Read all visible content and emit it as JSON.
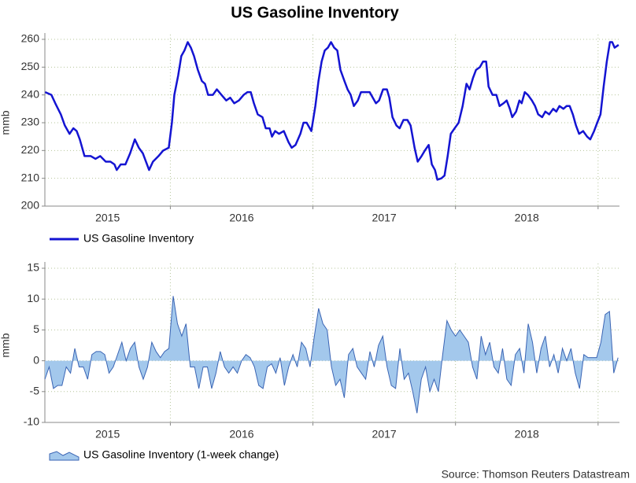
{
  "chart_data": [
    {
      "type": "line",
      "title": "US Gasoline Inventory",
      "ylabel": "mmb",
      "x": [
        2015.122,
        2015.166,
        2015.193,
        2015.232,
        2015.26,
        2015.293,
        2015.32,
        2015.343,
        2015.365,
        2015.398,
        2015.442,
        2015.475,
        2015.508,
        2015.547,
        2015.58,
        2015.608,
        2015.624,
        2015.652,
        2015.685,
        2015.718,
        2015.751,
        2015.779,
        2015.807,
        2015.829,
        2015.851,
        2015.878,
        2015.917,
        2015.95,
        2015.989,
        2016.011,
        2016.028,
        2016.055,
        2016.077,
        2016.099,
        2016.122,
        2016.144,
        2016.166,
        2016.193,
        2016.221,
        2016.243,
        2016.265,
        2016.298,
        2016.326,
        2016.359,
        2016.392,
        2016.42,
        2016.448,
        2016.481,
        2016.514,
        2016.541,
        2016.564,
        2016.586,
        2016.613,
        2016.646,
        2016.669,
        2016.696,
        2016.713,
        2016.735,
        2016.762,
        2016.796,
        2016.829,
        2016.851,
        2016.878,
        2016.912,
        2016.934,
        2016.956,
        2016.989,
        2017.017,
        2017.039,
        2017.061,
        2017.083,
        2017.105,
        2017.127,
        2017.149,
        2017.171,
        2017.193,
        2017.221,
        2017.243,
        2017.265,
        2017.287,
        2017.315,
        2017.337,
        2017.37,
        2017.398,
        2017.42,
        2017.442,
        2017.464,
        2017.492,
        2017.519,
        2017.536,
        2017.558,
        2017.586,
        2017.608,
        2017.635,
        2017.663,
        2017.685,
        2017.713,
        2017.735,
        2017.762,
        2017.785,
        2017.812,
        2017.834,
        2017.856,
        2017.873,
        2017.901,
        2017.923,
        2017.945,
        2017.967,
        2017.994,
        2018.022,
        2018.05,
        2018.077,
        2018.099,
        2018.122,
        2018.144,
        2018.171,
        2018.193,
        2018.215,
        2018.232,
        2018.26,
        2018.287,
        2018.309,
        2018.337,
        2018.359,
        2018.381,
        2018.398,
        2018.425,
        2018.448,
        2018.464,
        2018.486,
        2018.508,
        2018.536,
        2018.558,
        2018.58,
        2018.608,
        2018.63,
        2018.657,
        2018.685,
        2018.707,
        2018.729,
        2018.757,
        2018.779,
        2018.801,
        2018.823,
        2018.845,
        2018.867,
        2018.895,
        2018.923,
        2018.945,
        2018.972,
        2018.994,
        2019.017,
        2019.039,
        2019.061,
        2019.083,
        2019.099,
        2019.116,
        2019.144
      ],
      "series": [
        {
          "name": "US Gasoline Inventory",
          "color": "#1414d2",
          "values": [
            241,
            240,
            237,
            233,
            229,
            226,
            228,
            227,
            224,
            218,
            218,
            217,
            218,
            216,
            216,
            215,
            213,
            215,
            215,
            219,
            224,
            221,
            219,
            216,
            213,
            216,
            218,
            220,
            221,
            230,
            240,
            247,
            254,
            256,
            259,
            257,
            254,
            249,
            245,
            244,
            240,
            240,
            242,
            240,
            238,
            239,
            237,
            238,
            240,
            241,
            241,
            237,
            233,
            232,
            228,
            228,
            225,
            227,
            226,
            227,
            223,
            221,
            222,
            226,
            230,
            230,
            227,
            236,
            245,
            252,
            256,
            257,
            259,
            257,
            256,
            249,
            245,
            242,
            240,
            236,
            238,
            241,
            241,
            241,
            239,
            237,
            238,
            242,
            242,
            239,
            232,
            229,
            228,
            231,
            231,
            229,
            221,
            216,
            218,
            220,
            222,
            215,
            213,
            209.5,
            210,
            211,
            218,
            226,
            228,
            230,
            236,
            244,
            242,
            246,
            249,
            250,
            252,
            252,
            243,
            240,
            240,
            236,
            237,
            238,
            235,
            232,
            234,
            238,
            237,
            241,
            240,
            238,
            236,
            233,
            232,
            234,
            233,
            235,
            234,
            236,
            235,
            236,
            236,
            233,
            229,
            226,
            227,
            225,
            224,
            227,
            230,
            233,
            243,
            252,
            259,
            259,
            257,
            258
          ]
        }
      ],
      "xlim": [
        2015.12,
        2019.15
      ],
      "xticks": [
        {
          "value": 2015.56,
          "label": "2015"
        },
        {
          "value": 2016.5,
          "label": "2016"
        },
        {
          "value": 2017.5,
          "label": "2017"
        },
        {
          "value": 2018.5,
          "label": "2018"
        }
      ],
      "xgrid": [
        2016,
        2017,
        2018,
        2019
      ],
      "ylim": [
        200,
        260
      ],
      "yticks": [
        200,
        210,
        220,
        230,
        240,
        250,
        260
      ],
      "grid": true
    },
    {
      "type": "area",
      "ylabel": "mmb",
      "x": [
        2015.12,
        2015.15,
        2015.18,
        2015.21,
        2015.24,
        2015.27,
        2015.3,
        2015.33,
        2015.36,
        2015.39,
        2015.42,
        2015.45,
        2015.48,
        2015.51,
        2015.54,
        2015.57,
        2015.6,
        2015.63,
        2015.66,
        2015.69,
        2015.72,
        2015.75,
        2015.78,
        2015.81,
        2015.84,
        2015.87,
        2015.9,
        2015.93,
        2015.96,
        2015.99,
        2016.02,
        2016.05,
        2016.08,
        2016.11,
        2016.14,
        2016.17,
        2016.2,
        2016.23,
        2016.26,
        2016.29,
        2016.32,
        2016.35,
        2016.38,
        2016.41,
        2016.44,
        2016.47,
        2016.5,
        2016.53,
        2016.56,
        2016.59,
        2016.62,
        2016.65,
        2016.68,
        2016.71,
        2016.74,
        2016.77,
        2016.8,
        2016.83,
        2016.86,
        2016.89,
        2016.92,
        2016.95,
        2016.98,
        2017.01,
        2017.04,
        2017.07,
        2017.1,
        2017.13,
        2017.16,
        2017.19,
        2017.22,
        2017.25,
        2017.28,
        2017.31,
        2017.34,
        2017.37,
        2017.4,
        2017.43,
        2017.46,
        2017.49,
        2017.52,
        2017.55,
        2017.58,
        2017.61,
        2017.64,
        2017.67,
        2017.7,
        2017.73,
        2017.76,
        2017.79,
        2017.82,
        2017.85,
        2017.88,
        2017.91,
        2017.94,
        2017.97,
        2018,
        2018.03,
        2018.06,
        2018.09,
        2018.12,
        2018.15,
        2018.18,
        2018.21,
        2018.24,
        2018.27,
        2018.3,
        2018.33,
        2018.36,
        2018.39,
        2018.42,
        2018.45,
        2018.48,
        2018.51,
        2018.54,
        2018.57,
        2018.6,
        2018.63,
        2018.66,
        2018.69,
        2018.72,
        2018.75,
        2018.78,
        2018.81,
        2018.84,
        2018.87,
        2018.9,
        2018.93,
        2018.96,
        2018.99,
        2019.02,
        2019.05,
        2019.08,
        2019.11,
        2019.14
      ],
      "series": [
        {
          "name": "US Gasoline Inventory (1-week change)",
          "color": "#a3c8ec",
          "line_color": "#3a64b4",
          "values": [
            -3,
            -1,
            -4.5,
            -4,
            -4,
            -1,
            -2,
            2,
            -1,
            -1,
            -3,
            1,
            1.5,
            1.5,
            1,
            -2,
            -1,
            1,
            3,
            0,
            2,
            3,
            -1,
            -3,
            -1,
            3,
            1.5,
            0.5,
            1.5,
            2,
            10.5,
            6,
            4,
            6,
            -1,
            -1,
            -4.5,
            -1,
            -1,
            -4.5,
            -2,
            1.5,
            -1,
            -2,
            -1,
            -2,
            0,
            1,
            0.5,
            -1,
            -4,
            -4.5,
            -1,
            -0.5,
            -2,
            0.5,
            -4,
            -1,
            1,
            -1,
            3,
            2,
            -1,
            4,
            8.5,
            6,
            5,
            -1,
            -4,
            -3,
            -6,
            1,
            2,
            -1,
            -2,
            -3,
            1.5,
            -1,
            2.5,
            4,
            -1,
            -4,
            -4.5,
            2,
            -3,
            -2,
            -5,
            -8.5,
            -3,
            -1,
            -5,
            -3,
            -5,
            1,
            6.5,
            5,
            4,
            5,
            4,
            3,
            -1,
            -3,
            4,
            1,
            3,
            -1,
            -2,
            2,
            -3,
            -4,
            1,
            2,
            -2,
            6,
            3,
            -2,
            2,
            4,
            -1,
            1,
            -2,
            2,
            0,
            2,
            -2,
            -4.5,
            1,
            0.5,
            0.5,
            0.5,
            3,
            7.5,
            8,
            -2,
            0.5
          ]
        }
      ],
      "xlim": [
        2015.12,
        2019.15
      ],
      "xticks": [
        {
          "value": 2015.56,
          "label": "2015"
        },
        {
          "value": 2016.5,
          "label": "2016"
        },
        {
          "value": 2017.5,
          "label": "2017"
        },
        {
          "value": 2018.5,
          "label": "2018"
        }
      ],
      "xgrid": [
        2016,
        2017,
        2018,
        2019
      ],
      "ylim": [
        -10,
        15
      ],
      "yticks": [
        -10,
        -5,
        0,
        5,
        10,
        15
      ],
      "grid": true
    }
  ],
  "source": "Source: Thomson Reuters Datastream"
}
